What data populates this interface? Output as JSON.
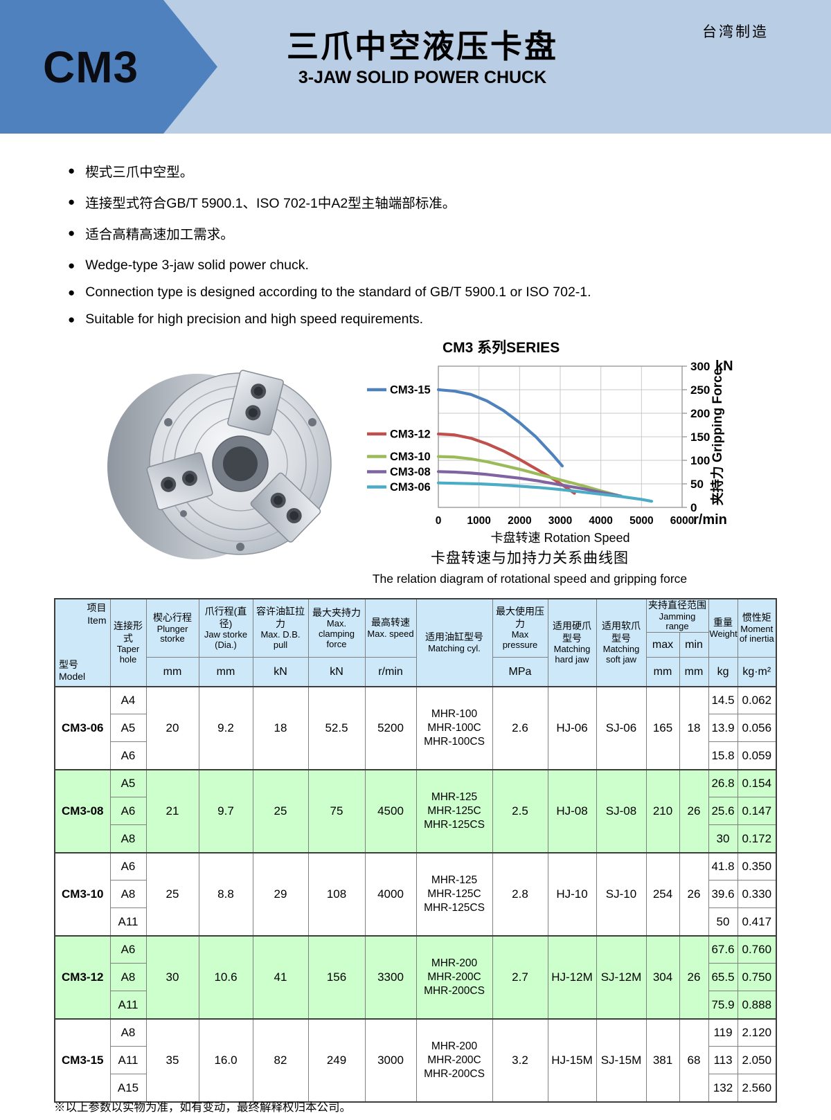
{
  "banner": {
    "model": "CM3",
    "title_zh": "三爪中空液压卡盘",
    "title_en": "3-JAW SOLID POWER CHUCK",
    "origin": "台湾制造"
  },
  "features_zh": [
    "楔式三爪中空型。",
    "连接型式符合GB/T 5900.1、ISO 702-1中A2型主轴端部标准。",
    "适合高精高速加工需求。"
  ],
  "features_en": [
    "Wedge-type 3-jaw solid power chuck.",
    "Connection type is designed according to the standard of GB/T 5900.1 or ISO 702-1.",
    "Suitable for high precision and high speed requirements."
  ],
  "chart_data": {
    "type": "line",
    "title": "CM3 系列SERIES",
    "xlabel": "卡盘转速 Rotation Speed",
    "ylabel": "夹持力 Gripping Force",
    "x_unit": "r/min",
    "y_unit": "kN",
    "xlim": [
      0,
      6000
    ],
    "ylim": [
      0,
      300
    ],
    "x_ticks": [
      0,
      1000,
      2000,
      3000,
      4000,
      5000,
      6000
    ],
    "y_ticks": [
      0,
      50,
      100,
      150,
      200,
      250,
      300
    ],
    "grid": true,
    "legend_position": "left",
    "series": [
      {
        "name": "CM3-15",
        "color": "#4F81BD",
        "points": [
          [
            0,
            250
          ],
          [
            400,
            247
          ],
          [
            800,
            240
          ],
          [
            1200,
            226
          ],
          [
            1600,
            206
          ],
          [
            2000,
            180
          ],
          [
            2400,
            150
          ],
          [
            2800,
            113
          ],
          [
            3050,
            88
          ]
        ]
      },
      {
        "name": "CM3-12",
        "color": "#C0504D",
        "points": [
          [
            0,
            156
          ],
          [
            400,
            154
          ],
          [
            800,
            147
          ],
          [
            1200,
            135
          ],
          [
            1600,
            120
          ],
          [
            2000,
            102
          ],
          [
            2400,
            82
          ],
          [
            2800,
            62
          ],
          [
            3100,
            45
          ],
          [
            3350,
            30
          ]
        ]
      },
      {
        "name": "CM3-10",
        "color": "#9BBB59",
        "points": [
          [
            0,
            108
          ],
          [
            400,
            107
          ],
          [
            800,
            103
          ],
          [
            1200,
            97
          ],
          [
            1600,
            89
          ],
          [
            2000,
            81
          ],
          [
            2400,
            72
          ],
          [
            2800,
            63
          ],
          [
            3200,
            54
          ],
          [
            3600,
            45
          ],
          [
            4000,
            35
          ],
          [
            4400,
            26
          ]
        ]
      },
      {
        "name": "CM3-08",
        "color": "#8064A2",
        "points": [
          [
            0,
            76
          ],
          [
            400,
            75
          ],
          [
            800,
            73
          ],
          [
            1200,
            70
          ],
          [
            1600,
            66
          ],
          [
            2000,
            62
          ],
          [
            2400,
            57
          ],
          [
            2800,
            51
          ],
          [
            3200,
            45
          ],
          [
            3600,
            39
          ],
          [
            4000,
            32
          ],
          [
            4500,
            24
          ]
        ]
      },
      {
        "name": "CM3-06",
        "color": "#4BACC6",
        "points": [
          [
            0,
            52
          ],
          [
            500,
            51
          ],
          [
            1000,
            50
          ],
          [
            1500,
            48
          ],
          [
            2000,
            45
          ],
          [
            2500,
            42
          ],
          [
            3000,
            38
          ],
          [
            3500,
            33
          ],
          [
            4000,
            28
          ],
          [
            4500,
            23
          ],
          [
            5000,
            17
          ],
          [
            5250,
            13
          ]
        ]
      }
    ],
    "caption_zh": "卡盘转速与加持力关系曲线图",
    "caption_en": "The relation diagram of rotational speed and gripping force"
  },
  "table": {
    "corner": {
      "item_zh": "项目",
      "item_en": "Item",
      "model_zh": "型号",
      "model_en": "Model"
    },
    "taper_header": {
      "zh": "连接形式",
      "en": "Taper hole"
    },
    "mid_headers": [
      {
        "zh": "楔心行程",
        "en": "Plunger storke",
        "unit": "mm"
      },
      {
        "zh": "爪行程(直径)",
        "en": "Jaw storke (Dia.)",
        "unit": "mm"
      },
      {
        "zh": "容许油缸拉力",
        "en": "Max. D.B. pull",
        "unit": "kN"
      },
      {
        "zh": "最大夹持力",
        "en": "Max. clamping force",
        "unit": "kN"
      },
      {
        "zh": "最高转速",
        "en": "Max. speed",
        "unit": "r/min"
      }
    ],
    "cyl_header": {
      "zh": "适用油缸型号",
      "en": "Matching cyl."
    },
    "pressure_header": {
      "zh": "最大使用压力",
      "en": "Max pressure",
      "unit": "MPa"
    },
    "hard_header": {
      "zh": "适用硬爪型号",
      "en": "Matching hard jaw"
    },
    "soft_header": {
      "zh": "适用软爪型号",
      "en": "Matching soft jaw"
    },
    "jamming_header": {
      "zh": "夹持直径范围",
      "en": "Jamming range",
      "sub": [
        "max",
        "min"
      ],
      "units": [
        "mm",
        "mm"
      ]
    },
    "weight_header": {
      "zh": "重量",
      "en": "Weight",
      "unit": "kg"
    },
    "inertia_header": {
      "zh": "惯性矩",
      "en": "Moment of inertia",
      "unit": "kg·m²"
    },
    "groups": [
      {
        "model": "CM3-06",
        "highlight": false,
        "tapers": [
          "A4",
          "A5",
          "A6"
        ],
        "plunger": "20",
        "jaw": "9.2",
        "pull": "18",
        "clamp": "52.5",
        "speed": "5200",
        "cyl": [
          "MHR-100",
          "MHR-100C",
          "MHR-100CS"
        ],
        "pressure": "2.6",
        "hard": "HJ-06",
        "soft": "SJ-06",
        "max": "165",
        "min": "18",
        "weights": [
          "14.5",
          "13.9",
          "15.8"
        ],
        "inertias": [
          "0.062",
          "0.056",
          "0.059"
        ]
      },
      {
        "model": "CM3-08",
        "highlight": true,
        "tapers": [
          "A5",
          "A6",
          "A8"
        ],
        "plunger": "21",
        "jaw": "9.7",
        "pull": "25",
        "clamp": "75",
        "speed": "4500",
        "cyl": [
          "MHR-125",
          "MHR-125C",
          "MHR-125CS"
        ],
        "pressure": "2.5",
        "hard": "HJ-08",
        "soft": "SJ-08",
        "max": "210",
        "min": "26",
        "weights": [
          "26.8",
          "25.6",
          "30"
        ],
        "inertias": [
          "0.154",
          "0.147",
          "0.172"
        ]
      },
      {
        "model": "CM3-10",
        "highlight": false,
        "tapers": [
          "A6",
          "A8",
          "A11"
        ],
        "plunger": "25",
        "jaw": "8.8",
        "pull": "29",
        "clamp": "108",
        "speed": "4000",
        "cyl": [
          "MHR-125",
          "MHR-125C",
          "MHR-125CS"
        ],
        "pressure": "2.8",
        "hard": "HJ-10",
        "soft": "SJ-10",
        "max": "254",
        "min": "26",
        "weights": [
          "41.8",
          "39.6",
          "50"
        ],
        "inertias": [
          "0.350",
          "0.330",
          "0.417"
        ]
      },
      {
        "model": "CM3-12",
        "highlight": true,
        "tapers": [
          "A6",
          "A8",
          "A11"
        ],
        "plunger": "30",
        "jaw": "10.6",
        "pull": "41",
        "clamp": "156",
        "speed": "3300",
        "cyl": [
          "MHR-200",
          "MHR-200C",
          "MHR-200CS"
        ],
        "pressure": "2.7",
        "hard": "HJ-12M",
        "soft": "SJ-12M",
        "max": "304",
        "min": "26",
        "weights": [
          "67.6",
          "65.5",
          "75.9"
        ],
        "inertias": [
          "0.760",
          "0.750",
          "0.888"
        ]
      },
      {
        "model": "CM3-15",
        "highlight": false,
        "tapers": [
          "A8",
          "A11",
          "A15"
        ],
        "plunger": "35",
        "jaw": "16.0",
        "pull": "82",
        "clamp": "249",
        "speed": "3000",
        "cyl": [
          "MHR-200",
          "MHR-200C",
          "MHR-200CS"
        ],
        "pressure": "3.2",
        "hard": "HJ-15M",
        "soft": "SJ-15M",
        "max": "381",
        "min": "68",
        "weights": [
          "119",
          "113",
          "132"
        ],
        "inertias": [
          "2.120",
          "2.050",
          "2.560"
        ]
      }
    ]
  },
  "footnote": "※以上参数以实物为准，如有变动，最终解释权归本公司。",
  "colors": {
    "banner_bg": "#B9CDE5",
    "banner_arrow": "#4E81BD",
    "table_header_bg": "#CDE9F9",
    "row_highlight": "#CCFFCC"
  }
}
